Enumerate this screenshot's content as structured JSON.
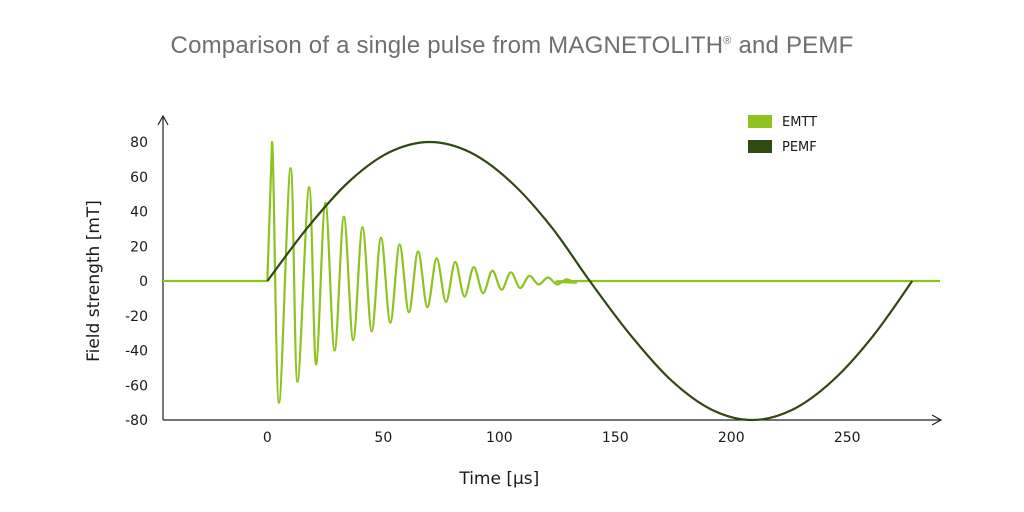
{
  "chart_data": {
    "type": "line",
    "title": "Comparison of a single pulse from MAGNETOLITH",
    "title_mark": "®",
    "title_tail": " and PEMF",
    "xlabel": "Time [µs]",
    "ylabel": "Field strength [mT]",
    "xlim": [
      -45,
      290
    ],
    "ylim": [
      -80,
      80
    ],
    "x_ticks": [
      0,
      50,
      100,
      150,
      200,
      250
    ],
    "y_ticks": [
      80,
      60,
      40,
      20,
      0,
      -20,
      -40,
      -60,
      -80
    ],
    "grid": false,
    "legend_position": "top-right",
    "series": [
      {
        "name": "EMTT",
        "color": "#8dc21f",
        "description_values": {
          "x": [
            -45,
            0,
            2,
            5,
            10,
            13,
            18,
            21,
            25,
            29,
            33,
            37,
            41,
            45,
            49,
            53,
            57,
            61,
            65,
            69,
            73,
            77,
            81,
            85,
            89,
            93,
            97,
            101,
            105,
            109,
            113,
            117,
            121,
            125,
            129,
            133,
            137,
            290
          ],
          "y": [
            0,
            0,
            80,
            -70,
            65,
            -58,
            54,
            -48,
            45,
            -40,
            37,
            -34,
            31,
            -29,
            25,
            -24,
            21,
            -18,
            17,
            -15,
            13,
            -12,
            11,
            -9,
            8,
            -7,
            6,
            -5,
            5,
            -4,
            3,
            -2,
            2,
            -2,
            1,
            -1,
            0,
            0
          ]
        }
      },
      {
        "name": "PEMF",
        "color": "#2f4a10",
        "description_values": {
          "x": [
            0,
            17.5,
            35,
            52.5,
            70,
            87.5,
            105,
            122.5,
            139,
            156.5,
            174,
            191.5,
            209,
            226.5,
            244,
            261.5,
            278
          ],
          "y": [
            0,
            31,
            57,
            74,
            80,
            74,
            57,
            31,
            0,
            -31,
            -57,
            -74,
            -80,
            -74,
            -57,
            -31,
            0
          ]
        }
      }
    ]
  }
}
